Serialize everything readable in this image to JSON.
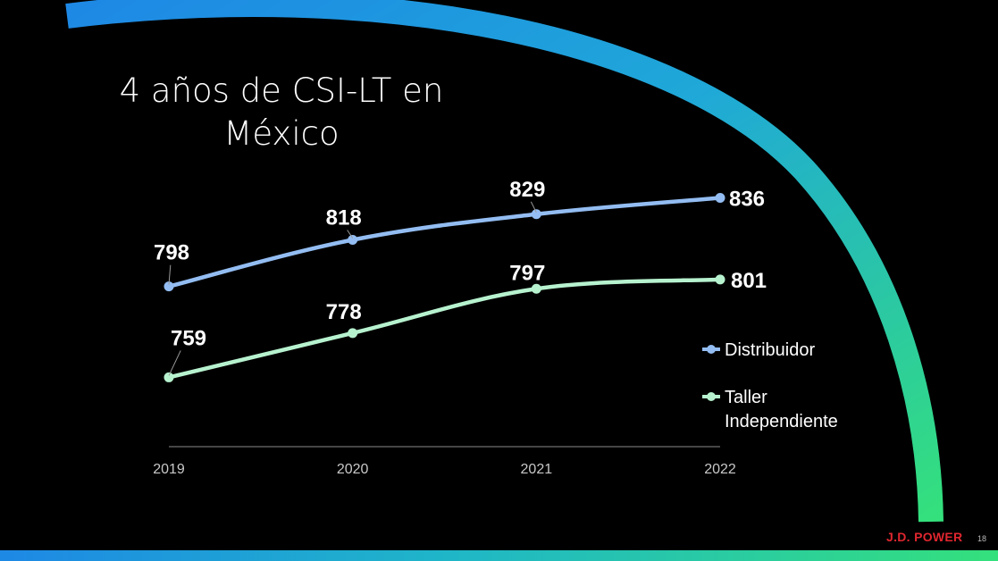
{
  "slide": {
    "title": "4 años de CSI-LT en México",
    "page_number": "18",
    "logo_text": "J.D. POWER"
  },
  "colors": {
    "background": "#000000",
    "distribuidor": "#93bdf2",
    "taller": "#b7f2cf",
    "arc_start": "#1e88e5",
    "arc_end": "#34e07c",
    "logo": "#e0262f"
  },
  "chart_data": {
    "type": "line",
    "categories": [
      "2019",
      "2020",
      "2021",
      "2022"
    ],
    "series": [
      {
        "name": "Distribuidor",
        "values": [
          798,
          818,
          829,
          836
        ],
        "color": "#93bdf2"
      },
      {
        "name": "Taller Independiente",
        "values": [
          759,
          778,
          797,
          801
        ],
        "color": "#b7f2cf"
      }
    ],
    "ylim": [
      740,
      850
    ],
    "grid": false,
    "legend_position": "right",
    "xlabel": "",
    "ylabel": ""
  }
}
